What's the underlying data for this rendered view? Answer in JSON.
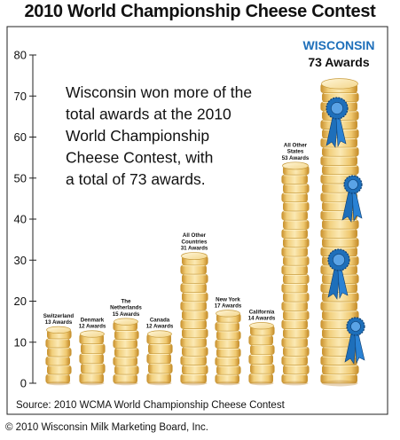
{
  "title": "2010 World Championship Cheese Contest",
  "source": "Source: 2010 WCMA World Championship Cheese Contest",
  "copyright": "© 2010 Wisconsin Milk Marketing Board, Inc.",
  "annotation": [
    "Wisconsin won more of the",
    "total awards at the 2010",
    "World Championship",
    "Cheese Contest, with",
    "a total of 73 awards."
  ],
  "highlight": {
    "state": "WISCONSIN",
    "count": "73 Awards"
  },
  "colors": {
    "cheese": "#f3d58a",
    "cheese_edge": "#c79a3a",
    "ribbon": "#1e6fba",
    "highlight_text": "#1e6fba"
  },
  "chart_data": {
    "type": "bar",
    "style": "stacked cheese wheels",
    "categories": [
      "Switzerland",
      "Denmark",
      "The Netherlands",
      "Canada",
      "All Other Countries",
      "New York",
      "California",
      "All Other States",
      "Wisconsin"
    ],
    "category_labels": [
      [
        "Switzerland",
        "13 Awards"
      ],
      [
        "Denmark",
        "12 Awards"
      ],
      [
        "The",
        "Netherlands",
        "15 Awards"
      ],
      [
        "Canada",
        "12 Awards"
      ],
      [
        "All Other",
        "Countries",
        "31 Awards"
      ],
      [
        "New York",
        "17 Awards"
      ],
      [
        "California",
        "14 Awards"
      ],
      [
        "All Other",
        "States",
        "53 Awards"
      ],
      []
    ],
    "values": [
      13,
      12,
      15,
      12,
      31,
      17,
      14,
      53,
      73
    ],
    "y_ticks": [
      "0",
      "10",
      "20",
      "30",
      "40",
      "50",
      "60",
      "70",
      "80"
    ],
    "ylim": [
      0,
      80
    ],
    "grid": false,
    "xlabel": "",
    "ylabel": ""
  }
}
